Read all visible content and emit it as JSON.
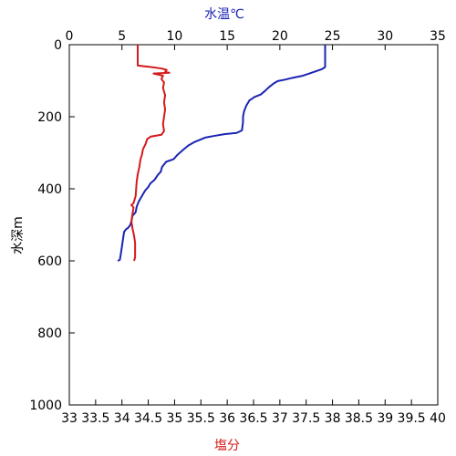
{
  "chart_data": {
    "type": "line",
    "top_axis": {
      "label": "水温℃",
      "color": "#1a24b4",
      "range": [
        0,
        35
      ],
      "ticks": [
        0,
        5,
        10,
        15,
        20,
        25,
        30,
        35
      ]
    },
    "bottom_axis": {
      "label": "塩分",
      "color": "#d41a1a",
      "range": [
        33,
        40
      ],
      "ticks": [
        "33",
        "33.5",
        "34",
        "34.5",
        "35",
        "35.5",
        "36",
        "36.5",
        "37",
        "37.5",
        "38",
        "38.5",
        "39",
        "39.5",
        "40"
      ]
    },
    "left_axis": {
      "label": "水深m",
      "range": [
        0,
        1000
      ],
      "inverted": true,
      "ticks": [
        0,
        200,
        400,
        600,
        800,
        1000
      ]
    },
    "grid": false,
    "series": [
      {
        "color": "#1a24b4",
        "axis": "top",
        "points": [
          [
            24.3,
            0
          ],
          [
            24.3,
            30
          ],
          [
            24.3,
            62
          ],
          [
            24.0,
            68
          ],
          [
            23.0,
            78
          ],
          [
            22.2,
            86
          ],
          [
            21.2,
            92
          ],
          [
            20.5,
            97
          ],
          [
            19.8,
            101
          ],
          [
            19.4,
            108
          ],
          [
            19.0,
            117
          ],
          [
            18.6,
            128
          ],
          [
            18.2,
            138
          ],
          [
            17.6,
            145
          ],
          [
            17.1,
            155
          ],
          [
            16.8,
            170
          ],
          [
            16.6,
            185
          ],
          [
            16.5,
            200
          ],
          [
            16.5,
            215
          ],
          [
            16.4,
            238
          ],
          [
            15.9,
            245
          ],
          [
            14.8,
            248
          ],
          [
            13.8,
            253
          ],
          [
            12.9,
            258
          ],
          [
            12.4,
            264
          ],
          [
            11.9,
            270
          ],
          [
            11.3,
            280
          ],
          [
            10.8,
            292
          ],
          [
            10.3,
            305
          ],
          [
            9.9,
            318
          ],
          [
            9.2,
            325
          ],
          [
            8.8,
            340
          ],
          [
            8.7,
            352
          ],
          [
            8.4,
            362
          ],
          [
            8.1,
            375
          ],
          [
            7.7,
            385
          ],
          [
            7.5,
            395
          ],
          [
            7.2,
            405
          ],
          [
            7.0,
            415
          ],
          [
            6.8,
            425
          ],
          [
            6.6,
            435
          ],
          [
            6.4,
            450
          ],
          [
            6.3,
            465
          ],
          [
            6.0,
            475
          ],
          [
            5.9,
            490
          ],
          [
            5.8,
            500
          ],
          [
            5.6,
            508
          ],
          [
            5.4,
            512
          ],
          [
            5.2,
            520
          ],
          [
            5.1,
            540
          ],
          [
            5.0,
            560
          ],
          [
            4.9,
            580
          ],
          [
            4.8,
            597
          ],
          [
            4.6,
            600
          ]
        ]
      },
      {
        "color": "#d41a1a",
        "axis": "bottom",
        "points": [
          [
            34.3,
            0
          ],
          [
            34.3,
            20
          ],
          [
            34.3,
            58
          ],
          [
            34.55,
            62
          ],
          [
            34.75,
            66
          ],
          [
            34.85,
            70
          ],
          [
            34.82,
            76
          ],
          [
            34.9,
            78
          ],
          [
            34.6,
            80
          ],
          [
            34.78,
            86
          ],
          [
            34.75,
            95
          ],
          [
            34.8,
            105
          ],
          [
            34.78,
            120
          ],
          [
            34.82,
            140
          ],
          [
            34.8,
            160
          ],
          [
            34.82,
            180
          ],
          [
            34.8,
            200
          ],
          [
            34.78,
            220
          ],
          [
            34.8,
            240
          ],
          [
            34.75,
            250
          ],
          [
            34.55,
            255
          ],
          [
            34.48,
            262
          ],
          [
            34.45,
            275
          ],
          [
            34.4,
            290
          ],
          [
            34.38,
            305
          ],
          [
            34.35,
            320
          ],
          [
            34.33,
            340
          ],
          [
            34.3,
            360
          ],
          [
            34.28,
            380
          ],
          [
            34.27,
            400
          ],
          [
            34.26,
            420
          ],
          [
            34.22,
            440
          ],
          [
            34.18,
            445
          ],
          [
            34.22,
            452
          ],
          [
            34.2,
            470
          ],
          [
            34.18,
            490
          ],
          [
            34.2,
            510
          ],
          [
            34.23,
            530
          ],
          [
            34.25,
            550
          ],
          [
            34.25,
            570
          ],
          [
            34.25,
            590
          ],
          [
            34.23,
            600
          ]
        ]
      }
    ]
  }
}
